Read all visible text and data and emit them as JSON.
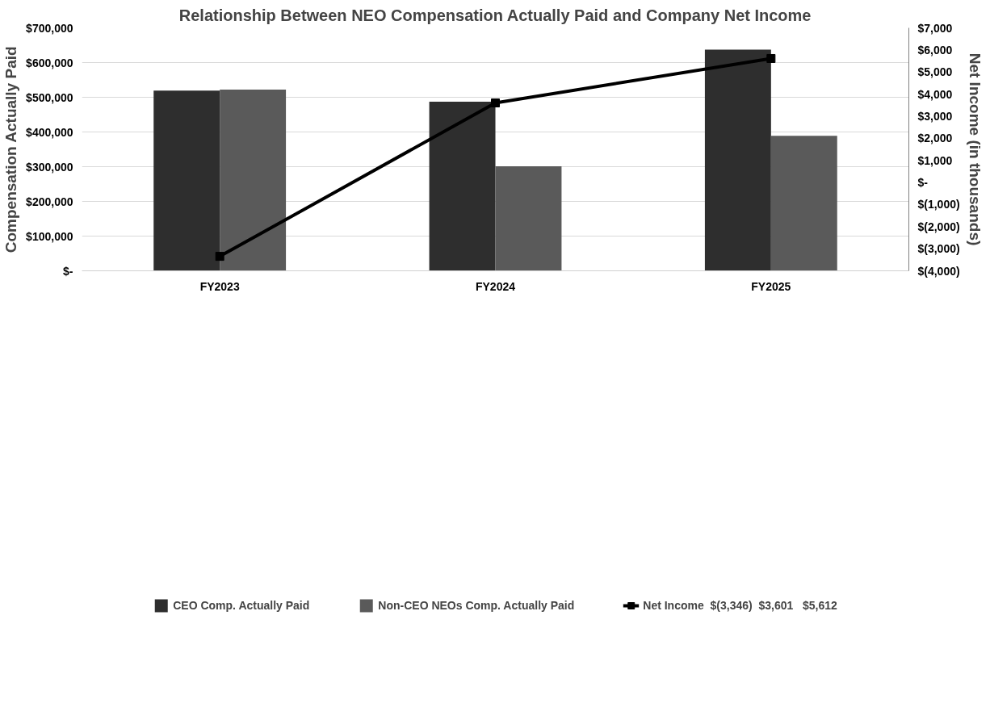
{
  "chart_data": {
    "type": "bar",
    "title": "Relationship Between NEO Compensation Actually Paid and Company Net Income",
    "ylabel": "Compensation Actually Paid",
    "y2label": "Net Income (in thousands)",
    "categories": [
      "FY2023",
      "FY2024",
      "FY2025"
    ],
    "series": [
      {
        "name": "CEO Comp. Actually Paid",
        "color": "#2e2e2e",
        "values": [
          519000,
          487000,
          637000
        ]
      },
      {
        "name": "Non-CEO NEOs Comp. Actually Paid",
        "color": "#5a5a5a",
        "values": [
          522000,
          301000,
          389000
        ]
      },
      {
        "name": "Net Income  $(3,346)  $3,601   $5,612",
        "color": "#000000",
        "type": "line",
        "axis": "y2",
        "marker": "square",
        "values": [
          -3346,
          3601,
          5612
        ]
      }
    ],
    "ylim": [
      0,
      700000
    ],
    "yticks": [
      {
        "value": 0,
        "label": "$-"
      },
      {
        "value": 100000,
        "label": "$100,000"
      },
      {
        "value": 200000,
        "label": "$200,000"
      },
      {
        "value": 300000,
        "label": "$300,000"
      },
      {
        "value": 400000,
        "label": "$400,000"
      },
      {
        "value": 500000,
        "label": "$500,000"
      },
      {
        "value": 600000,
        "label": "$600,000"
      },
      {
        "value": 700000,
        "label": "$700,000"
      }
    ],
    "y2lim": [
      -4000,
      7000
    ],
    "y2ticks": [
      {
        "value": -4000,
        "label": "$(4,000)"
      },
      {
        "value": -3000,
        "label": "$(3,000)"
      },
      {
        "value": -2000,
        "label": "$(2,000)"
      },
      {
        "value": -1000,
        "label": "$(1,000)"
      },
      {
        "value": 0,
        "label": "$-"
      },
      {
        "value": 1000,
        "label": "$1,000"
      },
      {
        "value": 2000,
        "label": "$2,000"
      },
      {
        "value": 3000,
        "label": "$3,000"
      },
      {
        "value": 4000,
        "label": "$4,000"
      },
      {
        "value": 5000,
        "label": "$5,000"
      },
      {
        "value": 6000,
        "label": "$6,000"
      },
      {
        "value": 7000,
        "label": "$7,000"
      }
    ],
    "grid": "y",
    "legend": "bottom"
  }
}
